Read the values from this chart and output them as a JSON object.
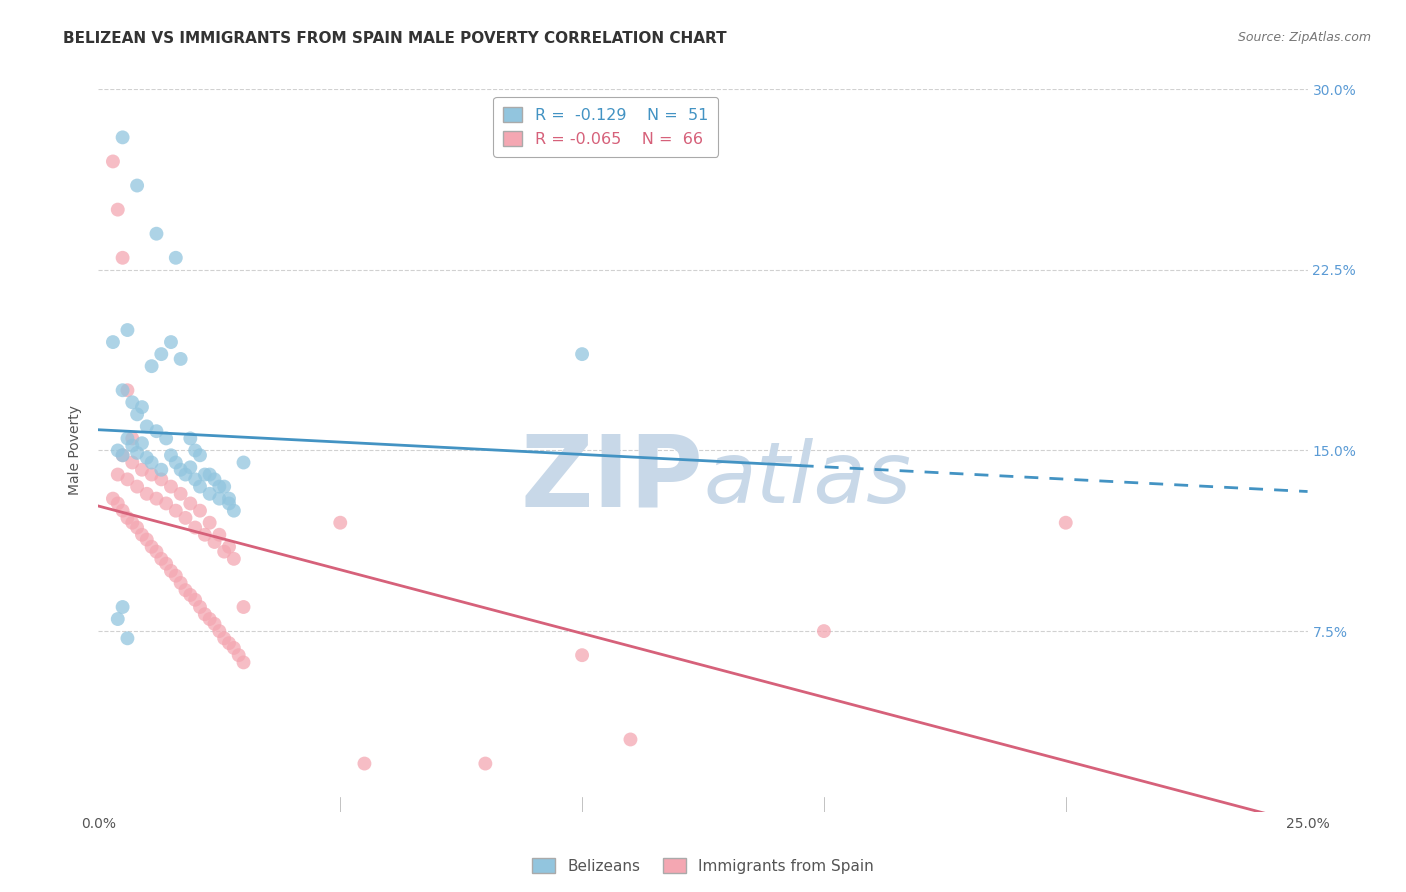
{
  "title": "BELIZEAN VS IMMIGRANTS FROM SPAIN MALE POVERTY CORRELATION CHART",
  "source": "Source: ZipAtlas.com",
  "ylabel": "Male Poverty",
  "xlim": [
    0.0,
    0.25
  ],
  "ylim": [
    0.0,
    0.3
  ],
  "yticks": [
    0.075,
    0.15,
    0.225,
    0.3
  ],
  "ytick_labels": [
    "7.5%",
    "15.0%",
    "22.5%",
    "30.0%"
  ],
  "xticks": [
    0.0,
    0.05,
    0.1,
    0.15,
    0.2,
    0.25
  ],
  "xtick_labels": [
    "0.0%",
    "",
    "",
    "",
    "",
    "25.0%"
  ],
  "blue_R": -0.129,
  "blue_N": 51,
  "pink_R": -0.065,
  "pink_N": 66,
  "blue_color": "#92C5DE",
  "pink_color": "#F4A7B2",
  "blue_line_color": "#4393C3",
  "pink_line_color": "#D6617A",
  "legend_label_blue": "Belizeans",
  "legend_label_pink": "Immigrants from Spain",
  "blue_scatter_x": [
    0.004,
    0.005,
    0.006,
    0.007,
    0.008,
    0.009,
    0.01,
    0.01,
    0.011,
    0.012,
    0.013,
    0.014,
    0.015,
    0.016,
    0.017,
    0.018,
    0.019,
    0.02,
    0.02,
    0.021,
    0.022,
    0.023,
    0.024,
    0.025,
    0.026,
    0.027,
    0.028,
    0.005,
    0.007,
    0.009,
    0.011,
    0.013,
    0.015,
    0.017,
    0.019,
    0.021,
    0.023,
    0.025,
    0.027,
    0.006,
    0.008,
    0.03,
    0.004,
    0.005,
    0.006,
    0.1,
    0.005,
    0.008,
    0.012,
    0.016,
    0.003
  ],
  "blue_scatter_y": [
    0.15,
    0.148,
    0.155,
    0.152,
    0.149,
    0.153,
    0.147,
    0.16,
    0.145,
    0.158,
    0.142,
    0.155,
    0.148,
    0.145,
    0.142,
    0.14,
    0.143,
    0.138,
    0.15,
    0.135,
    0.14,
    0.132,
    0.138,
    0.13,
    0.135,
    0.128,
    0.125,
    0.175,
    0.17,
    0.168,
    0.185,
    0.19,
    0.195,
    0.188,
    0.155,
    0.148,
    0.14,
    0.135,
    0.13,
    0.2,
    0.165,
    0.145,
    0.08,
    0.085,
    0.072,
    0.19,
    0.28,
    0.26,
    0.24,
    0.23,
    0.195
  ],
  "pink_scatter_x": [
    0.003,
    0.004,
    0.005,
    0.006,
    0.007,
    0.008,
    0.009,
    0.01,
    0.011,
    0.012,
    0.013,
    0.014,
    0.015,
    0.016,
    0.017,
    0.018,
    0.019,
    0.02,
    0.021,
    0.022,
    0.023,
    0.024,
    0.025,
    0.026,
    0.027,
    0.028,
    0.029,
    0.03,
    0.004,
    0.006,
    0.008,
    0.01,
    0.012,
    0.014,
    0.016,
    0.018,
    0.02,
    0.022,
    0.024,
    0.026,
    0.028,
    0.005,
    0.007,
    0.009,
    0.011,
    0.013,
    0.015,
    0.017,
    0.019,
    0.021,
    0.023,
    0.025,
    0.027,
    0.003,
    0.004,
    0.005,
    0.006,
    0.007,
    0.05,
    0.1,
    0.15,
    0.2,
    0.055,
    0.08,
    0.11,
    0.03
  ],
  "pink_scatter_y": [
    0.13,
    0.128,
    0.125,
    0.122,
    0.12,
    0.118,
    0.115,
    0.113,
    0.11,
    0.108,
    0.105,
    0.103,
    0.1,
    0.098,
    0.095,
    0.092,
    0.09,
    0.088,
    0.085,
    0.082,
    0.08,
    0.078,
    0.075,
    0.072,
    0.07,
    0.068,
    0.065,
    0.062,
    0.14,
    0.138,
    0.135,
    0.132,
    0.13,
    0.128,
    0.125,
    0.122,
    0.118,
    0.115,
    0.112,
    0.108,
    0.105,
    0.148,
    0.145,
    0.142,
    0.14,
    0.138,
    0.135,
    0.132,
    0.128,
    0.125,
    0.12,
    0.115,
    0.11,
    0.27,
    0.25,
    0.23,
    0.175,
    0.155,
    0.12,
    0.065,
    0.075,
    0.12,
    0.02,
    0.02,
    0.03,
    0.085
  ],
  "background_color": "#ffffff",
  "grid_color": "#cccccc",
  "watermark_zip": "ZIP",
  "watermark_atlas": "atlas",
  "watermark_color_zip": "#C8D8E8",
  "watermark_color_atlas": "#C8D8E8",
  "title_fontsize": 11,
  "axis_label_fontsize": 10,
  "tick_fontsize": 10,
  "right_tick_color": "#5B9BD5",
  "blue_line_start_x": 0.0,
  "blue_line_end_x": 0.25,
  "blue_line_solid_end_x": 0.145,
  "pink_line_start_x": 0.0,
  "pink_line_end_x": 0.25
}
